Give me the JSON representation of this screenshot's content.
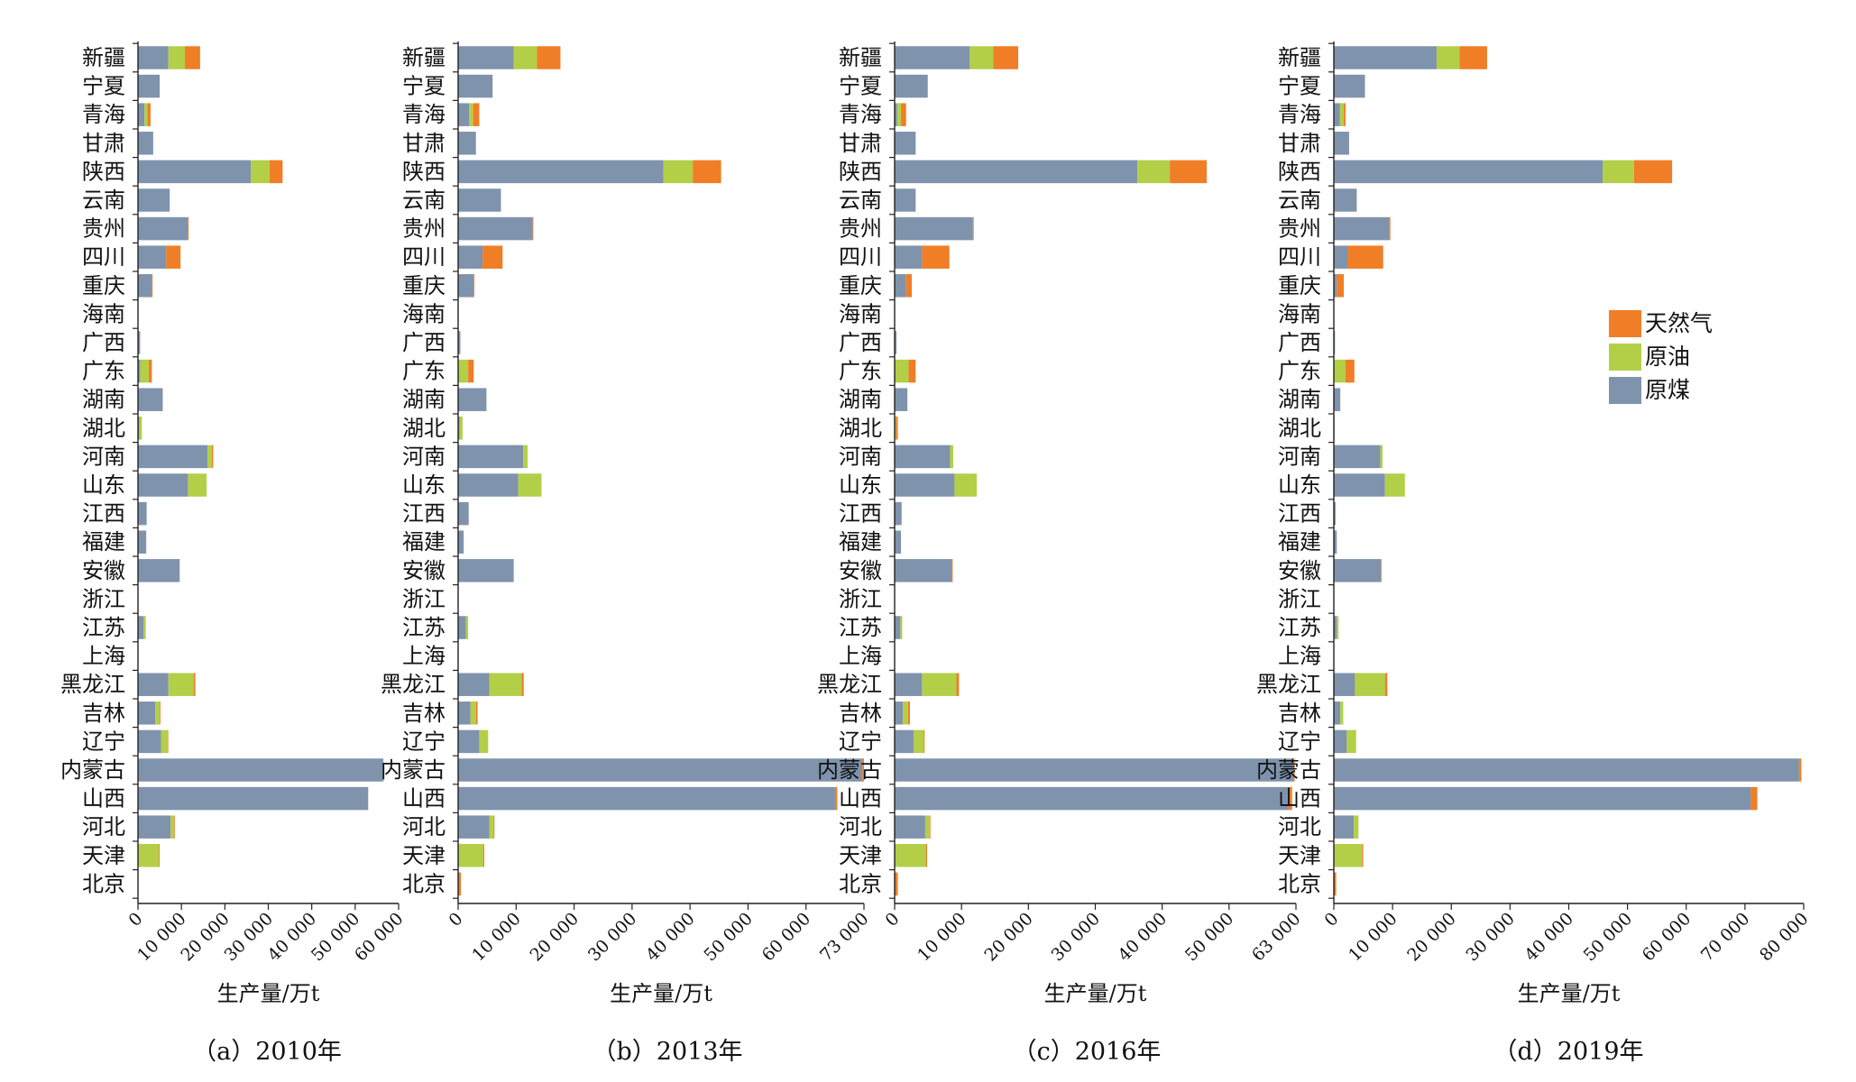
{
  "legend": [
    {
      "name": "天然气",
      "color": "#F07E26"
    },
    {
      "name": "原油",
      "color": "#B3CF48"
    },
    {
      "name": "原煤",
      "color": "#7F93AD"
    }
  ],
  "chart_data": [
    {
      "type": "bar",
      "orientation": "horizontal",
      "stacked": true,
      "caption": "（a）2010年",
      "xlabel": "生产量/万t",
      "xlim": [
        0,
        60000
      ],
      "xticks": [
        "0",
        "10 000",
        "20 000",
        "30 000",
        "40 000",
        "50 000",
        "60 000"
      ],
      "categories": [
        "新疆",
        "宁夏",
        "青海",
        "甘肃",
        "陕西",
        "云南",
        "贵州",
        "四川",
        "重庆",
        "海南",
        "广西",
        "广东",
        "湖南",
        "湖北",
        "河南",
        "山东",
        "江西",
        "福建",
        "安徽",
        "浙江",
        "江苏",
        "上海",
        "黑龙江",
        "吉林",
        "辽宁",
        "内蒙古",
        "山西",
        "河北",
        "天津",
        "北京"
      ],
      "series": [
        {
          "name": "原煤",
          "values": [
            7000,
            5000,
            1500,
            3500,
            26000,
            7300,
            11500,
            6500,
            3200,
            0,
            500,
            500,
            5700,
            300,
            16000,
            11500,
            2000,
            1900,
            9600,
            0,
            1300,
            0,
            7000,
            4000,
            5300,
            56500,
            53000,
            7500,
            0,
            0
          ]
        },
        {
          "name": "原油",
          "values": [
            3800,
            0,
            700,
            0,
            4300,
            0,
            0,
            0,
            0,
            0,
            0,
            2000,
            0,
            600,
            1000,
            4300,
            0,
            0,
            0,
            0,
            500,
            0,
            5800,
            1000,
            1500,
            0,
            0,
            800,
            4800,
            0
          ]
        },
        {
          "name": "天然气",
          "values": [
            3500,
            0,
            700,
            0,
            3000,
            0,
            100,
            3300,
            100,
            0,
            0,
            700,
            0,
            0,
            300,
            0,
            0,
            0,
            0,
            0,
            0,
            0,
            400,
            100,
            100,
            0,
            0,
            100,
            200,
            0
          ]
        }
      ]
    },
    {
      "type": "bar",
      "orientation": "horizontal",
      "stacked": true,
      "caption": "（b）2013年",
      "xlabel": "生产量/万t",
      "xlim": [
        0,
        73000
      ],
      "xticks": [
        "0",
        "10 000",
        "20 000",
        "30 000",
        "40 000",
        "50 000",
        "60 000",
        "73 000"
      ],
      "categories": [
        "新疆",
        "宁夏",
        "青海",
        "甘肃",
        "陕西",
        "云南",
        "贵州",
        "四川",
        "重庆",
        "海南",
        "广西",
        "广东",
        "湖南",
        "湖北",
        "河南",
        "山东",
        "江西",
        "福建",
        "安徽",
        "浙江",
        "江苏",
        "上海",
        "黑龙江",
        "吉林",
        "辽宁",
        "内蒙古",
        "山西",
        "河北",
        "天津",
        "北京"
      ],
      "series": [
        {
          "name": "原煤",
          "values": [
            10000,
            6200,
            2000,
            3200,
            36900,
            7700,
            13400,
            4400,
            2800,
            0,
            400,
            0,
            5100,
            300,
            11700,
            10800,
            1900,
            1000,
            10000,
            0,
            1400,
            0,
            5600,
            2200,
            3800,
            72700,
            67800,
            5600,
            0,
            0
          ]
        },
        {
          "name": "原油",
          "values": [
            4200,
            0,
            700,
            0,
            5300,
            0,
            0,
            0,
            0,
            0,
            0,
            1800,
            0,
            500,
            800,
            4200,
            0,
            0,
            0,
            0,
            400,
            0,
            5800,
            1000,
            1600,
            0,
            0,
            800,
            4500,
            0
          ]
        },
        {
          "name": "天然气",
          "values": [
            4200,
            0,
            1100,
            0,
            5100,
            0,
            100,
            3600,
            100,
            0,
            0,
            1000,
            0,
            0,
            0,
            0,
            0,
            0,
            0,
            0,
            0,
            0,
            400,
            300,
            0,
            300,
            400,
            100,
            200,
            500
          ]
        }
      ]
    },
    {
      "type": "bar",
      "orientation": "horizontal",
      "stacked": true,
      "caption": "（c）2016年",
      "xlabel": "生产量/万t",
      "xlim": [
        0,
        63000
      ],
      "xticks": [
        "0",
        "10 000",
        "20 000",
        "30 000",
        "40 000",
        "50 000",
        "63 000"
      ],
      "categories": [
        "新疆",
        "宁夏",
        "青海",
        "甘肃",
        "陕西",
        "云南",
        "贵州",
        "四川",
        "重庆",
        "海南",
        "广西",
        "广东",
        "湖南",
        "湖北",
        "河南",
        "山东",
        "江西",
        "福建",
        "安徽",
        "浙江",
        "江苏",
        "上海",
        "黑龙江",
        "吉林",
        "辽宁",
        "内蒙古",
        "山西",
        "河北",
        "天津",
        "北京"
      ],
      "series": [
        {
          "name": "原煤",
          "values": [
            11800,
            5200,
            400,
            3300,
            38100,
            3300,
            12300,
            4300,
            1800,
            0,
            300,
            0,
            2000,
            0,
            8700,
            9400,
            1100,
            1000,
            9000,
            0,
            900,
            0,
            4300,
            1300,
            3000,
            62700,
            61800,
            4800,
            0,
            0
          ]
        },
        {
          "name": "原油",
          "values": [
            3700,
            0,
            600,
            0,
            5100,
            0,
            0,
            0,
            0,
            0,
            0,
            2200,
            0,
            200,
            500,
            3500,
            0,
            0,
            0,
            0,
            300,
            0,
            5400,
            800,
            1600,
            0,
            0,
            700,
            4900,
            0
          ]
        },
        {
          "name": "天然气",
          "values": [
            3900,
            0,
            800,
            0,
            5800,
            0,
            100,
            4300,
            900,
            0,
            0,
            1100,
            0,
            300,
            0,
            0,
            0,
            0,
            100,
            0,
            0,
            0,
            400,
            300,
            100,
            100,
            600,
            100,
            200,
            500
          ]
        }
      ]
    },
    {
      "type": "bar",
      "orientation": "horizontal",
      "stacked": true,
      "caption": "（d）2019年",
      "xlabel": "生产量/万t",
      "xlim": [
        0,
        80000
      ],
      "xticks": [
        "0",
        "10 000",
        "20 000",
        "30 000",
        "40 000",
        "50 000",
        "60 000",
        "70 000",
        "80 000"
      ],
      "categories": [
        "新疆",
        "宁夏",
        "青海",
        "甘肃",
        "陕西",
        "云南",
        "贵州",
        "四川",
        "重庆",
        "海南",
        "广西",
        "广东",
        "湖南",
        "湖北",
        "河南",
        "山东",
        "江西",
        "福建",
        "安徽",
        "浙江",
        "江苏",
        "上海",
        "黑龙江",
        "吉林",
        "辽宁",
        "内蒙古",
        "山西",
        "河北",
        "天津",
        "北京"
      ],
      "series": [
        {
          "name": "原煤",
          "values": [
            17500,
            5300,
            1000,
            2600,
            45800,
            3900,
            9500,
            2300,
            500,
            0,
            200,
            0,
            1100,
            100,
            7900,
            8700,
            300,
            500,
            8000,
            0,
            500,
            0,
            3600,
            1100,
            2200,
            79200,
            71000,
            3400,
            0,
            0
          ]
        },
        {
          "name": "原油",
          "values": [
            3900,
            0,
            700,
            0,
            5300,
            0,
            0,
            0,
            0,
            0,
            0,
            2000,
            0,
            0,
            400,
            3400,
            0,
            0,
            0,
            0,
            300,
            0,
            5100,
            500,
            1600,
            0,
            0,
            800,
            4800,
            0
          ]
        },
        {
          "name": "天然气",
          "values": [
            4700,
            0,
            300,
            0,
            6500,
            0,
            100,
            6100,
            1200,
            0,
            0,
            1500,
            0,
            0,
            0,
            0,
            0,
            0,
            100,
            0,
            0,
            0,
            400,
            0,
            0,
            400,
            1100,
            0,
            200,
            400
          ]
        }
      ]
    }
  ]
}
